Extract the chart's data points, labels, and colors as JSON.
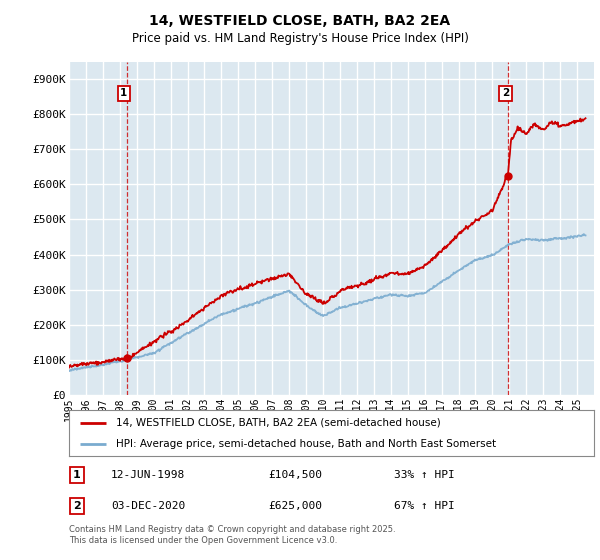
{
  "title": "14, WESTFIELD CLOSE, BATH, BA2 2EA",
  "subtitle": "Price paid vs. HM Land Registry's House Price Index (HPI)",
  "legend_line1": "14, WESTFIELD CLOSE, BATH, BA2 2EA (semi-detached house)",
  "legend_line2": "HPI: Average price, semi-detached house, Bath and North East Somerset",
  "annotation1_date": "12-JUN-1998",
  "annotation1_price": "£104,500",
  "annotation1_hpi": "33% ↑ HPI",
  "annotation2_date": "03-DEC-2020",
  "annotation2_price": "£625,000",
  "annotation2_hpi": "67% ↑ HPI",
  "footer": "Contains HM Land Registry data © Crown copyright and database right 2025.\nThis data is licensed under the Open Government Licence v3.0.",
  "red_color": "#cc0000",
  "blue_color": "#7aabcf",
  "plot_bg": "#dce8f0",
  "grid_color": "#ffffff",
  "ylim": [
    0,
    950000
  ],
  "yticks": [
    0,
    100000,
    200000,
    300000,
    400000,
    500000,
    600000,
    700000,
    800000,
    900000
  ],
  "ytick_labels": [
    "£0",
    "£100K",
    "£200K",
    "£300K",
    "£400K",
    "£500K",
    "£600K",
    "£700K",
    "£800K",
    "£900K"
  ],
  "sale1_year": 1998.44,
  "sale1_price": 104500,
  "sale2_year": 2020.92,
  "sale2_price": 625000,
  "xmin": 1995,
  "xmax": 2026.0
}
